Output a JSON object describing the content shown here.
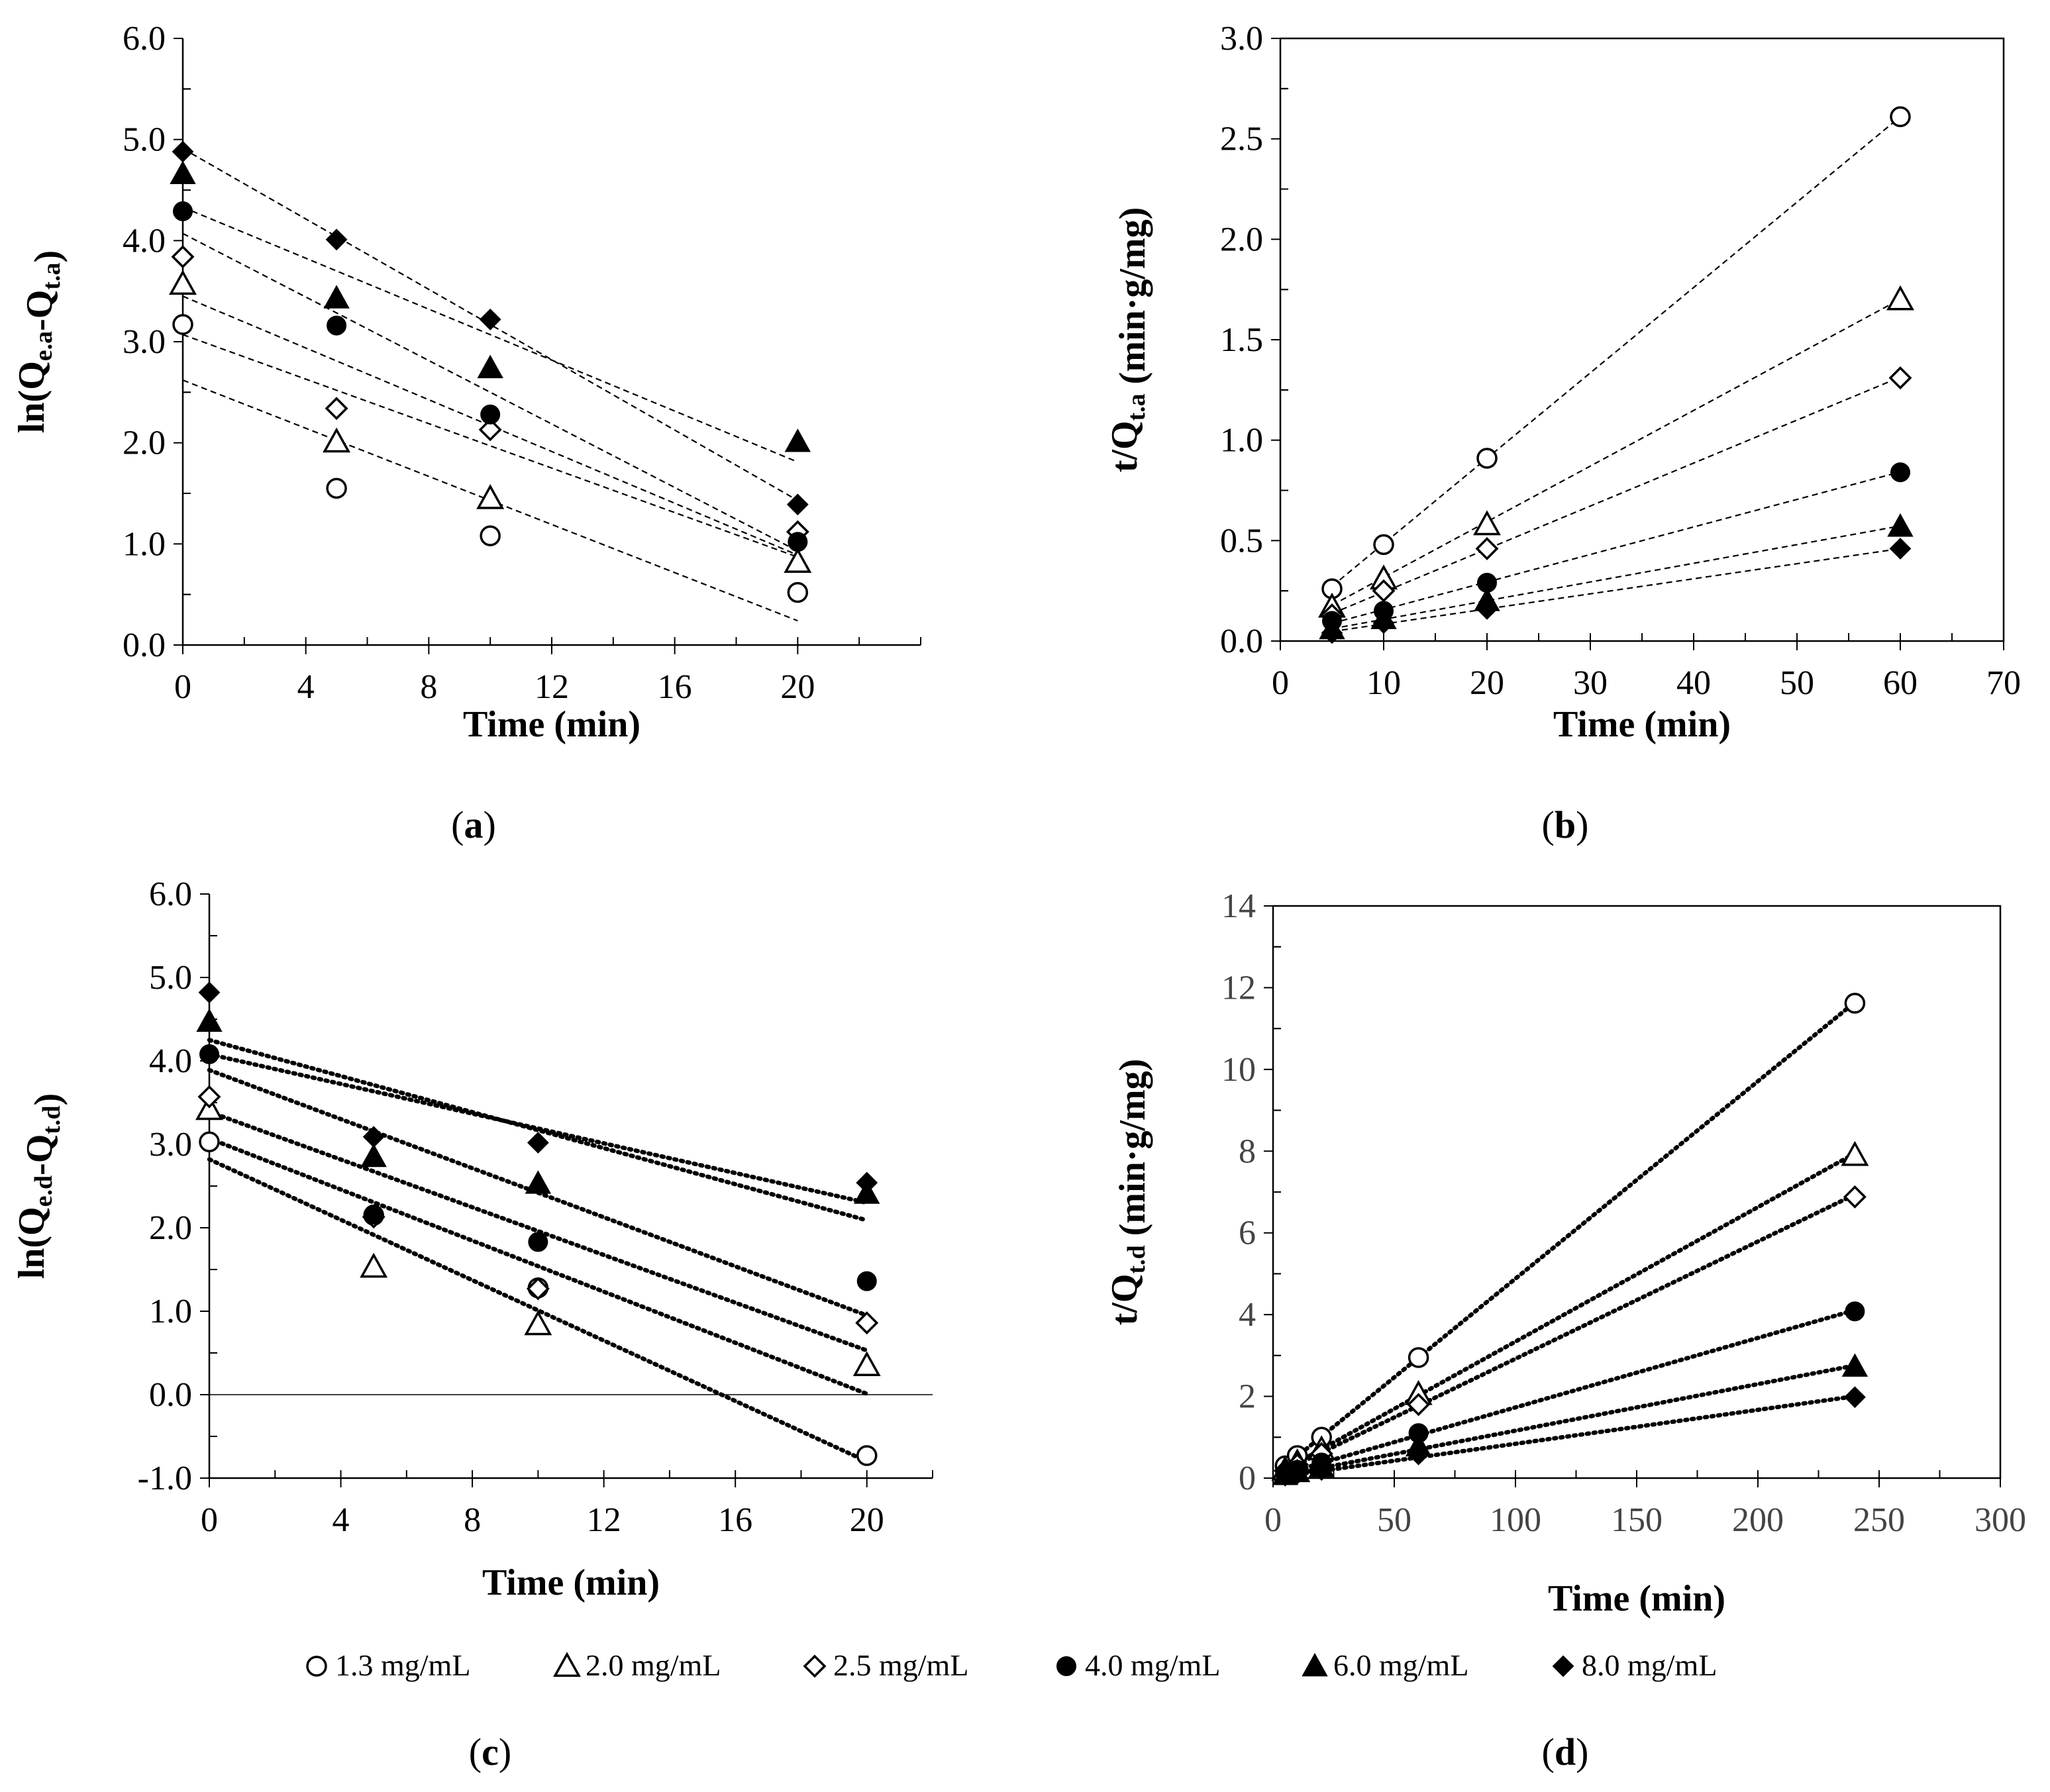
{
  "legend": [
    {
      "label": "1.3 mg/mL",
      "marker": "circle-open"
    },
    {
      "label": "2.0 mg/mL",
      "marker": "triangle-open"
    },
    {
      "label": "2.5 mg/mL",
      "marker": "diamond-open"
    },
    {
      "label": "4.0 mg/mL",
      "marker": "circle-filled"
    },
    {
      "label": "6.0 mg/mL",
      "marker": "triangle-filled"
    },
    {
      "label": "8.0 mg/mL",
      "marker": "diamond-filled"
    }
  ],
  "chart_data": [
    {
      "id": "a",
      "caption": {
        "open": "(",
        "letter": "a",
        "close": ")"
      },
      "type": "scatter",
      "xlabel": "Time (min)",
      "ylabel": {
        "main": "ln(Q",
        "sub1": "e.a",
        "mid": "-Q",
        "sub2": "t.a",
        "end": ")"
      },
      "xlim": [
        0,
        24
      ],
      "ylim": [
        0,
        6
      ],
      "xticks": [
        0,
        4,
        8,
        12,
        16,
        20
      ],
      "xminor": 2,
      "yticks": [
        0.0,
        1.0,
        2.0,
        3.0,
        4.0,
        5.0,
        6.0
      ],
      "yminor": 0.5,
      "ydecimals": 1,
      "line_style": "dashed",
      "frame": "left-bottom",
      "x": [
        0,
        5,
        10,
        20
      ],
      "series": [
        {
          "name": "1.3 mg/mL",
          "marker": "circle-open",
          "values": [
            3.17,
            1.55,
            1.08,
            0.52
          ],
          "fit": [
            2.62,
            -0.119
          ]
        },
        {
          "name": "2.0 mg/mL",
          "marker": "triangle-open",
          "values": [
            3.57,
            2.01,
            1.45,
            0.82
          ],
          "fit": [
            3.07,
            -0.11
          ]
        },
        {
          "name": "2.5 mg/mL",
          "marker": "diamond-open",
          "values": [
            3.84,
            2.34,
            2.13,
            1.12
          ],
          "fit": [
            3.45,
            -0.128
          ]
        },
        {
          "name": "4.0 mg/mL",
          "marker": "circle-filled",
          "values": [
            4.29,
            3.16,
            2.28,
            1.02
          ],
          "fit": [
            4.07,
            -0.157
          ]
        },
        {
          "name": "6.0 mg/mL",
          "marker": "triangle-filled",
          "values": [
            4.66,
            3.43,
            2.74,
            2.01
          ],
          "fit": [
            4.33,
            -0.126
          ]
        },
        {
          "name": "8.0 mg/mL",
          "marker": "diamond-filled",
          "values": [
            4.88,
            4.01,
            3.22,
            1.39
          ],
          "fit": [
            4.91,
            -0.174
          ]
        }
      ]
    },
    {
      "id": "b",
      "caption": {
        "open": "(",
        "letter": "b",
        "close": ")"
      },
      "type": "scatter",
      "xlabel": "Time (min)",
      "ylabel": {
        "main": "t/Q",
        "sub1": "t.a",
        "mid": "",
        "sub2": "",
        "end": " (min·g/mg)"
      },
      "xlim": [
        0,
        70
      ],
      "ylim": [
        0,
        3
      ],
      "xticks": [
        0,
        10,
        20,
        30,
        40,
        50,
        60,
        70
      ],
      "xminor": 5,
      "yticks": [
        0.0,
        0.5,
        1.0,
        1.5,
        2.0,
        2.5,
        3.0
      ],
      "yminor": 0.25,
      "ydecimals": 1,
      "line_style": "dashed",
      "frame": "box",
      "x": [
        5,
        10,
        20,
        60
      ],
      "series": [
        {
          "name": "1.3 mg/mL",
          "marker": "circle-open",
          "values": [
            0.26,
            0.48,
            0.91,
            2.61
          ],
          "fit": [
            0.06,
            0.0425
          ]
        },
        {
          "name": "2.0 mg/mL",
          "marker": "triangle-open",
          "values": [
            0.17,
            0.31,
            0.58,
            1.7
          ],
          "fit": [
            0.04,
            0.0277
          ]
        },
        {
          "name": "2.5 mg/mL",
          "marker": "diamond-open",
          "values": [
            0.13,
            0.25,
            0.46,
            1.31
          ],
          "fit": [
            0.03,
            0.0214
          ]
        },
        {
          "name": "4.0 mg/mL",
          "marker": "circle-filled",
          "values": [
            0.1,
            0.15,
            0.29,
            0.84
          ],
          "fit": [
            0.02,
            0.0137
          ]
        },
        {
          "name": "6.0 mg/mL",
          "marker": "triangle-filled",
          "values": [
            0.06,
            0.11,
            0.2,
            0.57
          ],
          "fit": [
            0.015,
            0.0093
          ]
        },
        {
          "name": "8.0 mg/mL",
          "marker": "diamond-filled",
          "values": [
            0.04,
            0.09,
            0.16,
            0.46
          ],
          "fit": [
            0.01,
            0.0075
          ]
        }
      ]
    },
    {
      "id": "c",
      "caption": {
        "open": "(",
        "letter": "c",
        "close": ")"
      },
      "type": "scatter",
      "xlabel": "Time (min)",
      "ylabel": {
        "main": "ln(Q",
        "sub1": "e.d",
        "mid": "-Q",
        "sub2": "t.d",
        "end": ")"
      },
      "xlim": [
        0,
        22
      ],
      "ylim": [
        -1,
        6
      ],
      "xticks": [
        0,
        4,
        8,
        12,
        16,
        20
      ],
      "xminor": 2,
      "yticks": [
        -1.0,
        0.0,
        1.0,
        2.0,
        3.0,
        4.0,
        5.0,
        6.0
      ],
      "yminor": 0.5,
      "ydecimals": 1,
      "line_style": "dotted",
      "frame": "left-bottom",
      "x": [
        0,
        5,
        10,
        20
      ],
      "series": [
        {
          "name": "1.3 mg/mL",
          "marker": "circle-open",
          "values": [
            3.03,
            2.15,
            1.28,
            -0.73
          ],
          "fit": [
            2.82,
            -0.181
          ]
        },
        {
          "name": "2.0 mg/mL",
          "marker": "triangle-open",
          "values": [
            3.42,
            1.53,
            0.84,
            0.35
          ],
          "fit": [
            3.07,
            -0.153
          ]
        },
        {
          "name": "2.5 mg/mL",
          "marker": "diamond-open",
          "values": [
            3.57,
            2.13,
            1.27,
            0.86
          ],
          "fit": [
            3.39,
            -0.143
          ]
        },
        {
          "name": "4.0 mg/mL",
          "marker": "circle-filled",
          "values": [
            4.08,
            2.16,
            1.83,
            1.36
          ],
          "fit": [
            3.89,
            -0.147
          ]
        },
        {
          "name": "6.0 mg/mL",
          "marker": "triangle-filled",
          "values": [
            4.47,
            2.85,
            2.53,
            2.41
          ],
          "fit": [
            4.25,
            -0.108
          ]
        },
        {
          "name": "8.0 mg/mL",
          "marker": "diamond-filled",
          "values": [
            4.82,
            3.09,
            3.02,
            2.54
          ],
          "fit": [
            4.08,
            -0.089
          ]
        }
      ]
    },
    {
      "id": "d",
      "caption": {
        "open": "(",
        "letter": "d",
        "close": ")"
      },
      "type": "scatter",
      "xlabel": "Time (min)",
      "ylabel": {
        "main": "t/Q",
        "sub1": "t.d",
        "mid": "",
        "sub2": "",
        "end": " (min·g/mg)"
      },
      "xlim": [
        0,
        300
      ],
      "ylim": [
        0,
        14
      ],
      "xticks": [
        0,
        50,
        100,
        150,
        200,
        250,
        300
      ],
      "xminor": 25,
      "yticks": [
        0,
        2,
        4,
        6,
        8,
        10,
        12,
        14
      ],
      "yminor": 1,
      "ydecimals": 0,
      "line_style": "dotted",
      "frame": "box",
      "x": [
        5,
        10,
        20,
        60,
        240
      ],
      "series": [
        {
          "name": "1.3 mg/mL",
          "marker": "circle-open",
          "values": [
            0.3,
            0.55,
            1.0,
            2.95,
            11.62
          ],
          "fit": [
            0.05,
            0.0483
          ]
        },
        {
          "name": "2.0 mg/mL",
          "marker": "triangle-open",
          "values": [
            0.2,
            0.38,
            0.7,
            2.05,
            7.9
          ],
          "fit": [
            0.05,
            0.0329
          ]
        },
        {
          "name": "2.5 mg/mL",
          "marker": "diamond-open",
          "values": [
            0.18,
            0.33,
            0.6,
            1.8,
            6.88
          ],
          "fit": [
            0.05,
            0.0287
          ]
        },
        {
          "name": "4.0 mg/mL",
          "marker": "circle-filled",
          "values": [
            0.12,
            0.2,
            0.38,
            1.1,
            4.08
          ],
          "fit": [
            0.03,
            0.017
          ]
        },
        {
          "name": "6.0 mg/mL",
          "marker": "triangle-filled",
          "values": [
            0.08,
            0.15,
            0.27,
            0.78,
            2.73
          ],
          "fit": [
            0.02,
            0.0114
          ]
        },
        {
          "name": "8.0 mg/mL",
          "marker": "diamond-filled",
          "values": [
            0.06,
            0.11,
            0.2,
            0.58,
            1.98
          ],
          "fit": [
            0.01,
            0.0083
          ]
        }
      ]
    }
  ]
}
